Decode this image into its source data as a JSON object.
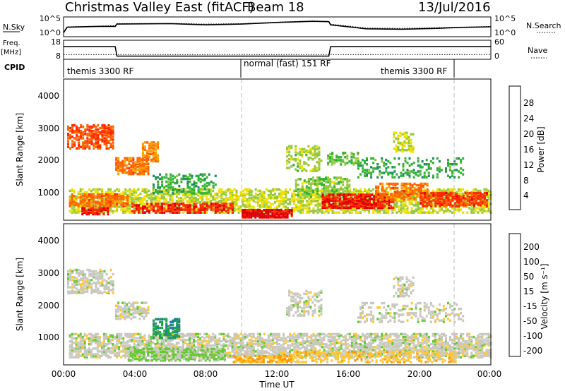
{
  "header": {
    "title": "Christmas Valley East (fitACF)",
    "beam": "Beam 18",
    "date": "13/Jul/2016"
  },
  "panels": {
    "nsky_label": "N.Sky",
    "nsky_ticks": [
      "10^5",
      "10^0"
    ],
    "nsearch_label": "N.Search",
    "nsearch_ticks": [
      "10^5",
      "10^0"
    ],
    "freq_label": "Freq.",
    "freq_unit": "[MHz]",
    "freq_ticks": [
      "18",
      "8"
    ],
    "nave_label": "Nave",
    "nave_ticks": [
      "60",
      "0"
    ],
    "cpid_label": "CPID",
    "cpid_segments": [
      "themis 3300 RF",
      "normal (fast) 151 RF",
      "themis 3300 RF"
    ]
  },
  "power_panel": {
    "ylabel": "Slant Range [km]",
    "yticks": [
      "1000",
      "2000",
      "3000",
      "4000"
    ],
    "colorbar_label": "Power [dB]",
    "colorbar_ticks": [
      "28",
      "24",
      "20",
      "16",
      "12",
      "8",
      "4"
    ],
    "colors": [
      "#0000ff",
      "#1e50c8",
      "#1e8c64",
      "#32b432",
      "#96c83c",
      "#f0e000",
      "#ffa000",
      "#ff6400",
      "#ff2800",
      "#e00000"
    ]
  },
  "velocity_panel": {
    "ylabel": "Slant Range [km]",
    "yticks": [
      "1000",
      "2000",
      "3000",
      "4000"
    ],
    "colorbar_label": "Velocity [m s⁻¹]",
    "colorbar_ticks": [
      "200",
      "100",
      "50",
      "15",
      "-15",
      "-50",
      "-100",
      "-200"
    ],
    "colors": [
      "#1e46c8",
      "#1e78a0",
      "#1ea050",
      "#64c832",
      "#c8c8c0",
      "#ffc832",
      "#ff9600",
      "#ff5a00",
      "#ff0000"
    ]
  },
  "xaxis": {
    "ticks": [
      "00:00",
      "04:00",
      "08:00",
      "12:00",
      "16:00",
      "20:00",
      "00:00"
    ],
    "label": "Time UT"
  },
  "chart_data": [
    {
      "type": "line",
      "title": "N.Sky / N.Search",
      "x": [
        0,
        0.2,
        2,
        2.9,
        3.0,
        6,
        8,
        10,
        12,
        14,
        14.9,
        15.0,
        17,
        19,
        21,
        22,
        24
      ],
      "series": [
        {
          "name": "N.Sky",
          "values": [
            1.0,
            2.4,
            2.6,
            2.6,
            3.2,
            3.3,
            3.0,
            3.2,
            3.6,
            3.9,
            3.8,
            3.0,
            2.0,
            1.9,
            2.1,
            2.3,
            2.5
          ]
        },
        {
          "name": "N.Search",
          "values": [
            1.2,
            2.5,
            2.7,
            2.8,
            3.3,
            3.4,
            3.2,
            3.3,
            3.7,
            4.0,
            3.9,
            3.2,
            2.2,
            2.1,
            2.3,
            2.4,
            2.6
          ]
        }
      ],
      "xlim": [
        0,
        24
      ],
      "ylim": [
        0,
        5
      ]
    },
    {
      "type": "line",
      "title": "Freq. / Nave",
      "x": [
        0,
        2.9,
        3.0,
        14.9,
        15.0,
        24
      ],
      "series": [
        {
          "name": "Freq. [MHz]",
          "values": [
            10.5,
            10.5,
            10.5,
            10.5,
            10.5,
            10.5
          ]
        },
        {
          "name": "Nave",
          "values": [
            40,
            40,
            10,
            10,
            40,
            40
          ]
        }
      ],
      "xlim": [
        0,
        24
      ],
      "ylim_freq": [
        8,
        18
      ],
      "ylim_nave": [
        0,
        60
      ]
    },
    {
      "type": "heatmap",
      "title": "Power [dB]",
      "xlim": [
        0,
        24
      ],
      "ylim": [
        200,
        4600
      ],
      "clim": [
        0,
        30
      ],
      "blobs": [
        {
          "t0": 0.3,
          "t1": 24.0,
          "r0": 400,
          "r1": 1150,
          "v": 15,
          "density": 0.55
        },
        {
          "t0": 0.3,
          "t1": 3.6,
          "r0": 600,
          "r1": 1000,
          "v": 22,
          "density": 0.6
        },
        {
          "t0": 1.0,
          "t1": 2.5,
          "r0": 350,
          "r1": 550,
          "v": 27,
          "density": 0.7
        },
        {
          "t0": 0.2,
          "t1": 2.8,
          "r0": 2400,
          "r1": 3150,
          "v": 24,
          "density": 0.6
        },
        {
          "t0": 2.9,
          "t1": 4.8,
          "r0": 1600,
          "r1": 2100,
          "v": 22,
          "density": 0.65
        },
        {
          "t0": 4.4,
          "t1": 5.3,
          "r0": 2000,
          "r1": 2600,
          "v": 21,
          "density": 0.55
        },
        {
          "t0": 5.0,
          "t1": 8.5,
          "r0": 1000,
          "r1": 1600,
          "v": 10,
          "density": 0.35
        },
        {
          "t0": 3.8,
          "t1": 9.5,
          "r0": 400,
          "r1": 700,
          "v": 26,
          "density": 0.6
        },
        {
          "t0": 10.0,
          "t1": 12.8,
          "r0": 250,
          "r1": 500,
          "v": 28,
          "density": 0.8
        },
        {
          "t0": 13.0,
          "t1": 16.0,
          "r0": 900,
          "r1": 1500,
          "v": 13,
          "density": 0.45
        },
        {
          "t0": 14.5,
          "t1": 18.5,
          "r0": 550,
          "r1": 1000,
          "v": 27,
          "density": 0.7
        },
        {
          "t0": 17.5,
          "t1": 20.5,
          "r0": 800,
          "r1": 1300,
          "v": 22,
          "density": 0.55
        },
        {
          "t0": 20.0,
          "t1": 23.8,
          "r0": 600,
          "r1": 1050,
          "v": 25,
          "density": 0.6
        },
        {
          "t0": 12.5,
          "t1": 14.5,
          "r0": 1700,
          "r1": 2500,
          "v": 14,
          "density": 0.35
        },
        {
          "t0": 14.8,
          "t1": 16.5,
          "r0": 1900,
          "r1": 2300,
          "v": 12,
          "density": 0.35
        },
        {
          "t0": 18.5,
          "t1": 19.6,
          "r0": 2300,
          "r1": 2900,
          "v": 15,
          "density": 0.45
        },
        {
          "t0": 16.5,
          "t1": 22.5,
          "r0": 1500,
          "r1": 2100,
          "v": 10,
          "density": 0.25
        }
      ]
    },
    {
      "type": "heatmap",
      "title": "Velocity [m s⁻¹]",
      "xlim": [
        0,
        24
      ],
      "ylim": [
        200,
        4600
      ],
      "clim": [
        -250,
        250
      ],
      "blobs": [
        {
          "t0": 0.3,
          "t1": 24.0,
          "r0": 400,
          "r1": 1150,
          "v": 0,
          "density": 0.6
        },
        {
          "t0": 0.2,
          "t1": 2.8,
          "r0": 2400,
          "r1": 3150,
          "v": 0,
          "density": 0.55
        },
        {
          "t0": 2.9,
          "t1": 4.8,
          "r0": 1600,
          "r1": 2100,
          "v": 0,
          "density": 0.55
        },
        {
          "t0": 5.0,
          "t1": 6.5,
          "r0": 1000,
          "r1": 1600,
          "v": 120,
          "density": 0.55
        },
        {
          "t0": 3.6,
          "t1": 9.0,
          "r0": 300,
          "r1": 700,
          "v": 40,
          "density": 0.6
        },
        {
          "t0": 9.5,
          "t1": 12.8,
          "r0": 250,
          "r1": 450,
          "v": -90,
          "density": 0.7
        },
        {
          "t0": 12.0,
          "t1": 22.0,
          "r0": 250,
          "r1": 600,
          "v": -60,
          "density": 0.4
        },
        {
          "t0": 12.5,
          "t1": 14.5,
          "r0": 1700,
          "r1": 2500,
          "v": 0,
          "density": 0.35
        },
        {
          "t0": 18.5,
          "t1": 19.6,
          "r0": 2300,
          "r1": 2900,
          "v": 0,
          "density": 0.45
        },
        {
          "t0": 16.5,
          "t1": 22.5,
          "r0": 1500,
          "r1": 2100,
          "v": 0,
          "density": 0.25
        }
      ]
    }
  ]
}
